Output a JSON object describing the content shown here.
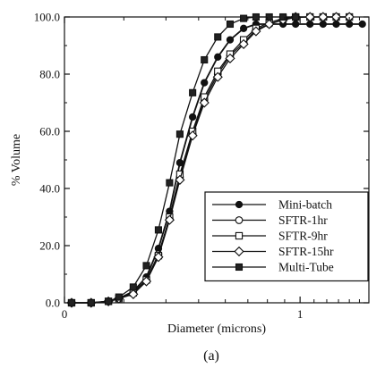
{
  "chart_data": {
    "type": "line",
    "xlabel": "Diameter (microns)",
    "ylabel": "% Volume",
    "caption": "(a)",
    "x_scale": "log",
    "xlim": [
      0.2,
      1.6
    ],
    "ylim": [
      0,
      100
    ],
    "x_ticks": [
      {
        "value": 0.2,
        "label": "0"
      },
      {
        "value": 1,
        "label": "1"
      }
    ],
    "y_ticks": [
      {
        "value": 0,
        "label": "0.0"
      },
      {
        "value": 20,
        "label": "20.0"
      },
      {
        "value": 40,
        "label": "40.0"
      },
      {
        "value": 60,
        "label": "60.0"
      },
      {
        "value": 80,
        "label": "80.0"
      },
      {
        "value": 100,
        "label": "100.0"
      }
    ],
    "legend_position": "bottom-right",
    "series": [
      {
        "name": "Mini-batch",
        "marker": "circle-filled",
        "x": [
          0.21,
          0.24,
          0.27,
          0.29,
          0.32,
          0.35,
          0.38,
          0.41,
          0.44,
          0.48,
          0.52,
          0.57,
          0.62,
          0.68,
          0.74,
          0.81,
          0.89,
          0.97,
          1.07,
          1.17,
          1.28,
          1.4,
          1.53
        ],
        "y": [
          0,
          0,
          0.5,
          1.5,
          4,
          9,
          19,
          32,
          49,
          65,
          77,
          86,
          92,
          96,
          97.5,
          97.5,
          97.5,
          97.5,
          97.5,
          97.5,
          97.5,
          97.5,
          97.5
        ]
      },
      {
        "name": "SFTR-1hr",
        "marker": "circle-open",
        "x": [
          0.21,
          0.24,
          0.27,
          0.29,
          0.32,
          0.35,
          0.38,
          0.41,
          0.44,
          0.48,
          0.52,
          0.57,
          0.62,
          0.68,
          0.74,
          0.81,
          0.89,
          0.97,
          1.07,
          1.17,
          1.28,
          1.4
        ],
        "y": [
          0,
          0,
          0.5,
          1.5,
          3.5,
          8,
          17,
          29.5,
          44,
          59,
          71,
          80,
          86.5,
          91,
          95.5,
          97.5,
          99,
          99.8,
          100,
          100,
          100,
          100
        ]
      },
      {
        "name": "SFTR-9hr",
        "marker": "square-open",
        "x": [
          0.21,
          0.24,
          0.27,
          0.29,
          0.32,
          0.35,
          0.38,
          0.41,
          0.44,
          0.48,
          0.52,
          0.57,
          0.62,
          0.68,
          0.74,
          0.81,
          0.89,
          0.97,
          1.07,
          1.17,
          1.28,
          1.4
        ],
        "y": [
          0,
          0,
          0.5,
          1.5,
          3.5,
          8,
          16.5,
          30,
          45,
          60,
          72,
          81,
          87,
          92,
          96,
          98,
          99.5,
          100,
          100,
          100,
          100,
          100
        ]
      },
      {
        "name": "SFTR-15hr",
        "marker": "diamond-open",
        "x": [
          0.21,
          0.24,
          0.27,
          0.29,
          0.32,
          0.35,
          0.38,
          0.41,
          0.44,
          0.48,
          0.52,
          0.57,
          0.62,
          0.68,
          0.74,
          0.81,
          0.89,
          0.97,
          1.07,
          1.17,
          1.28,
          1.4
        ],
        "y": [
          0,
          0,
          0.5,
          1.5,
          3,
          7.5,
          16,
          29,
          43,
          58.5,
          70,
          79,
          85.5,
          90.5,
          95,
          97.5,
          99,
          100,
          100,
          100,
          100,
          100
        ]
      },
      {
        "name": "Multi-Tube",
        "marker": "square-filled",
        "x": [
          0.21,
          0.24,
          0.27,
          0.29,
          0.32,
          0.35,
          0.38,
          0.41,
          0.44,
          0.48,
          0.52,
          0.57,
          0.62,
          0.68,
          0.74,
          0.81,
          0.89,
          0.97
        ],
        "y": [
          0,
          0,
          0.5,
          2,
          5.5,
          13,
          25.5,
          42,
          59,
          73.5,
          85,
          93,
          97.5,
          99.5,
          100,
          100,
          100,
          100
        ]
      }
    ]
  }
}
